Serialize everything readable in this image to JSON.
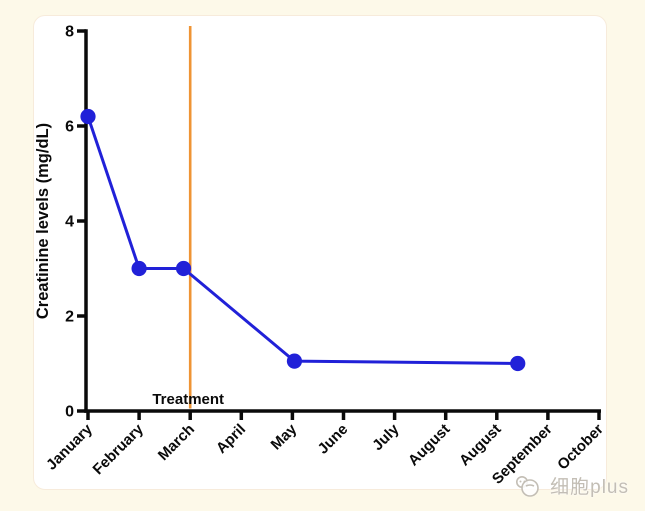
{
  "page": {
    "background_color": "#FDF9E9",
    "card_color": "#FFFFFF"
  },
  "chart_data": {
    "type": "line",
    "title": "",
    "xlabel": "",
    "ylabel": "Creatinine levels (mg/dL)",
    "ylim": [
      0,
      8
    ],
    "yticks": [
      0,
      2,
      4,
      6,
      8
    ],
    "x_tick_labels": [
      "January",
      "February",
      "March",
      "April",
      "May",
      "June",
      "July",
      "August",
      "August",
      "September",
      "October"
    ],
    "grid": false,
    "legend": "none",
    "series": [
      {
        "name": "Creatinine",
        "color": "#2121D8",
        "marker": "circle",
        "points": [
          {
            "x_label": "January",
            "x_index": 0,
            "y": 6.2
          },
          {
            "x_label": "February",
            "x_index": 1,
            "y": 3.0
          },
          {
            "x_label": "March",
            "x_index": 1.87,
            "y": 3.0
          },
          {
            "x_label": "May",
            "x_index": 4.04,
            "y": 1.05
          },
          {
            "x_label": "August",
            "x_index": 8.41,
            "y": 1.0
          }
        ]
      }
    ],
    "annotations": [
      {
        "type": "vline",
        "label": "Treatment",
        "x_index": 2,
        "x_label": "March",
        "color": "#EF9434"
      }
    ],
    "axis_color": "#0A0A0A"
  },
  "watermark": {
    "text": "细胞plus",
    "icon": "cell-mascot-icon",
    "color": "#C3BEB5"
  }
}
